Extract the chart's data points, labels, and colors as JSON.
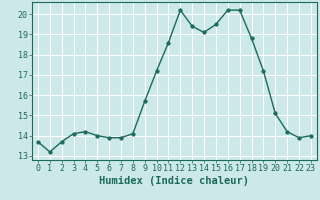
{
  "x": [
    0,
    1,
    2,
    3,
    4,
    5,
    6,
    7,
    8,
    9,
    10,
    11,
    12,
    13,
    14,
    15,
    16,
    17,
    18,
    19,
    20,
    21,
    22,
    23
  ],
  "y": [
    13.7,
    13.2,
    13.7,
    14.1,
    14.2,
    14.0,
    13.9,
    13.9,
    14.1,
    15.7,
    17.2,
    18.6,
    20.2,
    19.4,
    19.1,
    19.5,
    20.2,
    20.2,
    18.8,
    17.2,
    15.1,
    14.2,
    13.9,
    14.0
  ],
  "line_color": "#1a6b5a",
  "marker": "o",
  "marker_size": 2.5,
  "bg_color": "#cce8e8",
  "grid_color": "#ffffff",
  "grid_minor_color": "#e8d8d8",
  "xlabel": "Humidex (Indice chaleur)",
  "xlim": [
    -0.5,
    23.5
  ],
  "ylim": [
    12.8,
    20.6
  ],
  "yticks": [
    13,
    14,
    15,
    16,
    17,
    18,
    19,
    20
  ],
  "xticks": [
    0,
    1,
    2,
    3,
    4,
    5,
    6,
    7,
    8,
    9,
    10,
    11,
    12,
    13,
    14,
    15,
    16,
    17,
    18,
    19,
    20,
    21,
    22,
    23
  ],
  "tick_color": "#1a6b5a",
  "label_color": "#1a6b5a",
  "tick_fontsize": 6,
  "xlabel_fontsize": 7.5
}
